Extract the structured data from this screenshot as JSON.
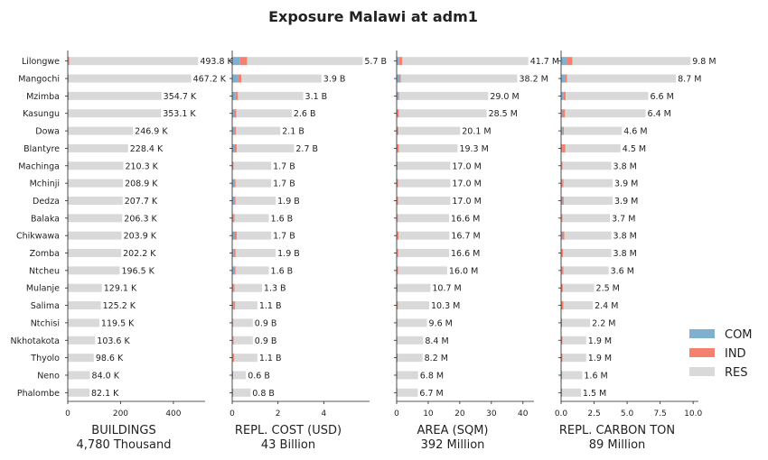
{
  "chart_data": {
    "type": "bar",
    "title": "Exposure Malawi at adm1",
    "orientation": "horizontal",
    "stacked": true,
    "categories": [
      "Lilongwe",
      "Mangochi",
      "Mzimba",
      "Kasungu",
      "Dowa",
      "Blantyre",
      "Machinga",
      "Mchinji",
      "Dedza",
      "Balaka",
      "Chikwawa",
      "Zomba",
      "Ntcheu",
      "Mulanje",
      "Salima",
      "Ntchisi",
      "Nkhotakota",
      "Thyolo",
      "Neno",
      "Phalombe"
    ],
    "legend": {
      "position": "right",
      "entries": [
        {
          "name": "COM",
          "color": "#7fb0d0"
        },
        {
          "name": "IND",
          "color": "#f4806e"
        },
        {
          "name": "RES",
          "color": "#d9d9d9"
        }
      ]
    },
    "panels": [
      {
        "xlabel": "BUILDINGS",
        "total": "4,780 Thousand",
        "xlim": [
          0,
          520
        ],
        "xticks": [
          0,
          200,
          400
        ],
        "xticklabels": [
          "0",
          "200",
          "400"
        ],
        "unit": "thousand",
        "labels": [
          "493.8 K",
          "467.2 K",
          "354.7 K",
          "353.1 K",
          "246.9 K",
          "228.4 K",
          "210.3 K",
          "208.9 K",
          "207.7 K",
          "206.3 K",
          "203.9 K",
          "202.2 K",
          "196.5 K",
          "129.1 K",
          "125.2 K",
          "119.5 K",
          "103.6 K",
          "98.6 K",
          "84.0 K",
          "82.1 K"
        ],
        "series": [
          {
            "name": "COM",
            "values": [
              2,
              2,
              1,
              1,
              1,
              1,
              1,
              1,
              1,
              1,
              1,
              1,
              1,
              1,
              1,
              1,
              1,
              1,
              1,
              1
            ]
          },
          {
            "name": "IND",
            "values": [
              4,
              2,
              3,
              1,
              1,
              1,
              1,
              1,
              1,
              1,
              1,
              1,
              1,
              1,
              1,
              1,
              1,
              1,
              1,
              1
            ]
          },
          {
            "name": "RES",
            "values": [
              487.8,
              463.2,
              350.7,
              351.1,
              244.9,
              226.4,
              208.3,
              206.9,
              205.7,
              204.3,
              201.9,
              200.2,
              194.5,
              127.1,
              123.2,
              117.5,
              101.6,
              96.6,
              82.0,
              80.1
            ]
          }
        ]
      },
      {
        "xlabel": "REPL. COST (USD)",
        "total": "43 Billion",
        "xlim": [
          0,
          6.0
        ],
        "xticks": [
          0,
          2,
          4
        ],
        "xticklabels": [
          "0",
          "2",
          "4"
        ],
        "unit": "billion",
        "labels": [
          "5.7 B",
          "3.9 B",
          "3.1 B",
          "2.6 B",
          "2.1 B",
          "2.7 B",
          "1.7 B",
          "1.7 B",
          "1.9 B",
          "1.6 B",
          "1.7 B",
          "1.9 B",
          "1.6 B",
          "1.3 B",
          "1.1 B",
          "0.9 B",
          "0.9 B",
          "1.1 B",
          "0.6 B",
          "0.8 B"
        ],
        "series": [
          {
            "name": "COM",
            "values": [
              0.35,
              0.25,
              0.15,
              0.08,
              0.12,
              0.08,
              0.05,
              0.1,
              0.1,
              0.05,
              0.08,
              0.07,
              0.1,
              0.05,
              0.05,
              0.03,
              0.03,
              0.03,
              0.02,
              0.02
            ]
          },
          {
            "name": "IND",
            "values": [
              0.3,
              0.15,
              0.1,
              0.1,
              0.05,
              0.12,
              0.02,
              0.05,
              0.05,
              0.05,
              0.12,
              0.08,
              0.05,
              0.05,
              0.08,
              0.02,
              0.03,
              0.05,
              0.02,
              0.02
            ]
          },
          {
            "name": "RES",
            "values": [
              5.05,
              3.5,
              2.85,
              2.42,
              1.93,
              2.5,
              1.63,
              1.55,
              1.75,
              1.5,
              1.5,
              1.75,
              1.45,
              1.2,
              0.97,
              0.85,
              0.84,
              1.02,
              0.56,
              0.76
            ]
          }
        ]
      },
      {
        "xlabel": "AREA (SQM)",
        "total": "392 Million",
        "xlim": [
          0,
          43.5
        ],
        "xticks": [
          0,
          10,
          20,
          30,
          40
        ],
        "xticklabels": [
          "0",
          "10",
          "20",
          "30",
          "40"
        ],
        "unit": "million",
        "labels": [
          "41.7 M",
          "38.2 M",
          "29.0 M",
          "28.5 M",
          "20.1 M",
          "19.3 M",
          "17.0 M",
          "17.0 M",
          "17.0 M",
          "16.6 M",
          "16.7 M",
          "16.6 M",
          "16.0 M",
          "10.7 M",
          "10.3 M",
          "9.6 M",
          "8.4 M",
          "8.2 M",
          "6.8 M",
          "6.7 M"
        ],
        "series": [
          {
            "name": "COM",
            "values": [
              0.8,
              1.0,
              0.5,
              0.3,
              0.4,
              0.3,
              0.2,
              0.3,
              0.3,
              0.2,
              0.2,
              0.2,
              0.3,
              0.1,
              0.1,
              0.1,
              0.1,
              0.1,
              0.1,
              0.1
            ]
          },
          {
            "name": "IND",
            "values": [
              1.0,
              0.3,
              0.3,
              0.4,
              0.2,
              0.4,
              0.1,
              0.2,
              0.2,
              0.2,
              0.4,
              0.3,
              0.2,
              0.2,
              0.3,
              0.1,
              0.1,
              0.2,
              0.1,
              0.1
            ]
          },
          {
            "name": "RES",
            "values": [
              39.9,
              36.9,
              28.2,
              27.8,
              19.5,
              18.6,
              16.7,
              16.5,
              16.5,
              16.2,
              16.1,
              16.1,
              15.5,
              10.4,
              9.9,
              9.4,
              8.2,
              7.9,
              6.6,
              6.5
            ]
          }
        ]
      },
      {
        "xlabel": "REPL. CARBON TON",
        "total": "89 Million",
        "xlim": [
          0,
          10.4
        ],
        "xticks": [
          0,
          2.5,
          5.0,
          7.5,
          10.0
        ],
        "xticklabels": [
          "0.0",
          "2.5",
          "5.0",
          "7.5",
          "10.0"
        ],
        "unit": "million",
        "labels": [
          "9.8 M",
          "8.7 M",
          "6.6 M",
          "6.4 M",
          "4.6 M",
          "4.5 M",
          "3.8 M",
          "3.9 M",
          "3.9 M",
          "3.7 M",
          "3.8 M",
          "3.8 M",
          "3.6 M",
          "2.5 M",
          "2.4 M",
          "2.2 M",
          "1.9 M",
          "1.9 M",
          "1.6 M",
          "1.5 M"
        ],
        "series": [
          {
            "name": "COM",
            "values": [
              0.45,
              0.3,
              0.15,
              0.1,
              0.12,
              0.08,
              0.05,
              0.08,
              0.1,
              0.05,
              0.1,
              0.05,
              0.08,
              0.03,
              0.03,
              0.02,
              0.02,
              0.02,
              0.02,
              0.02
            ]
          },
          {
            "name": "IND",
            "values": [
              0.4,
              0.15,
              0.2,
              0.2,
              0.1,
              0.25,
              0.05,
              0.1,
              0.1,
              0.05,
              0.15,
              0.1,
              0.1,
              0.1,
              0.15,
              0.05,
              0.08,
              0.08,
              0.05,
              0.05
            ]
          },
          {
            "name": "RES",
            "values": [
              8.95,
              8.25,
              6.25,
              6.1,
              4.38,
              4.17,
              3.7,
              3.72,
              3.7,
              3.6,
              3.55,
              3.65,
              3.42,
              2.37,
              2.22,
              2.13,
              1.8,
              1.8,
              1.53,
              1.43
            ]
          }
        ]
      }
    ]
  }
}
